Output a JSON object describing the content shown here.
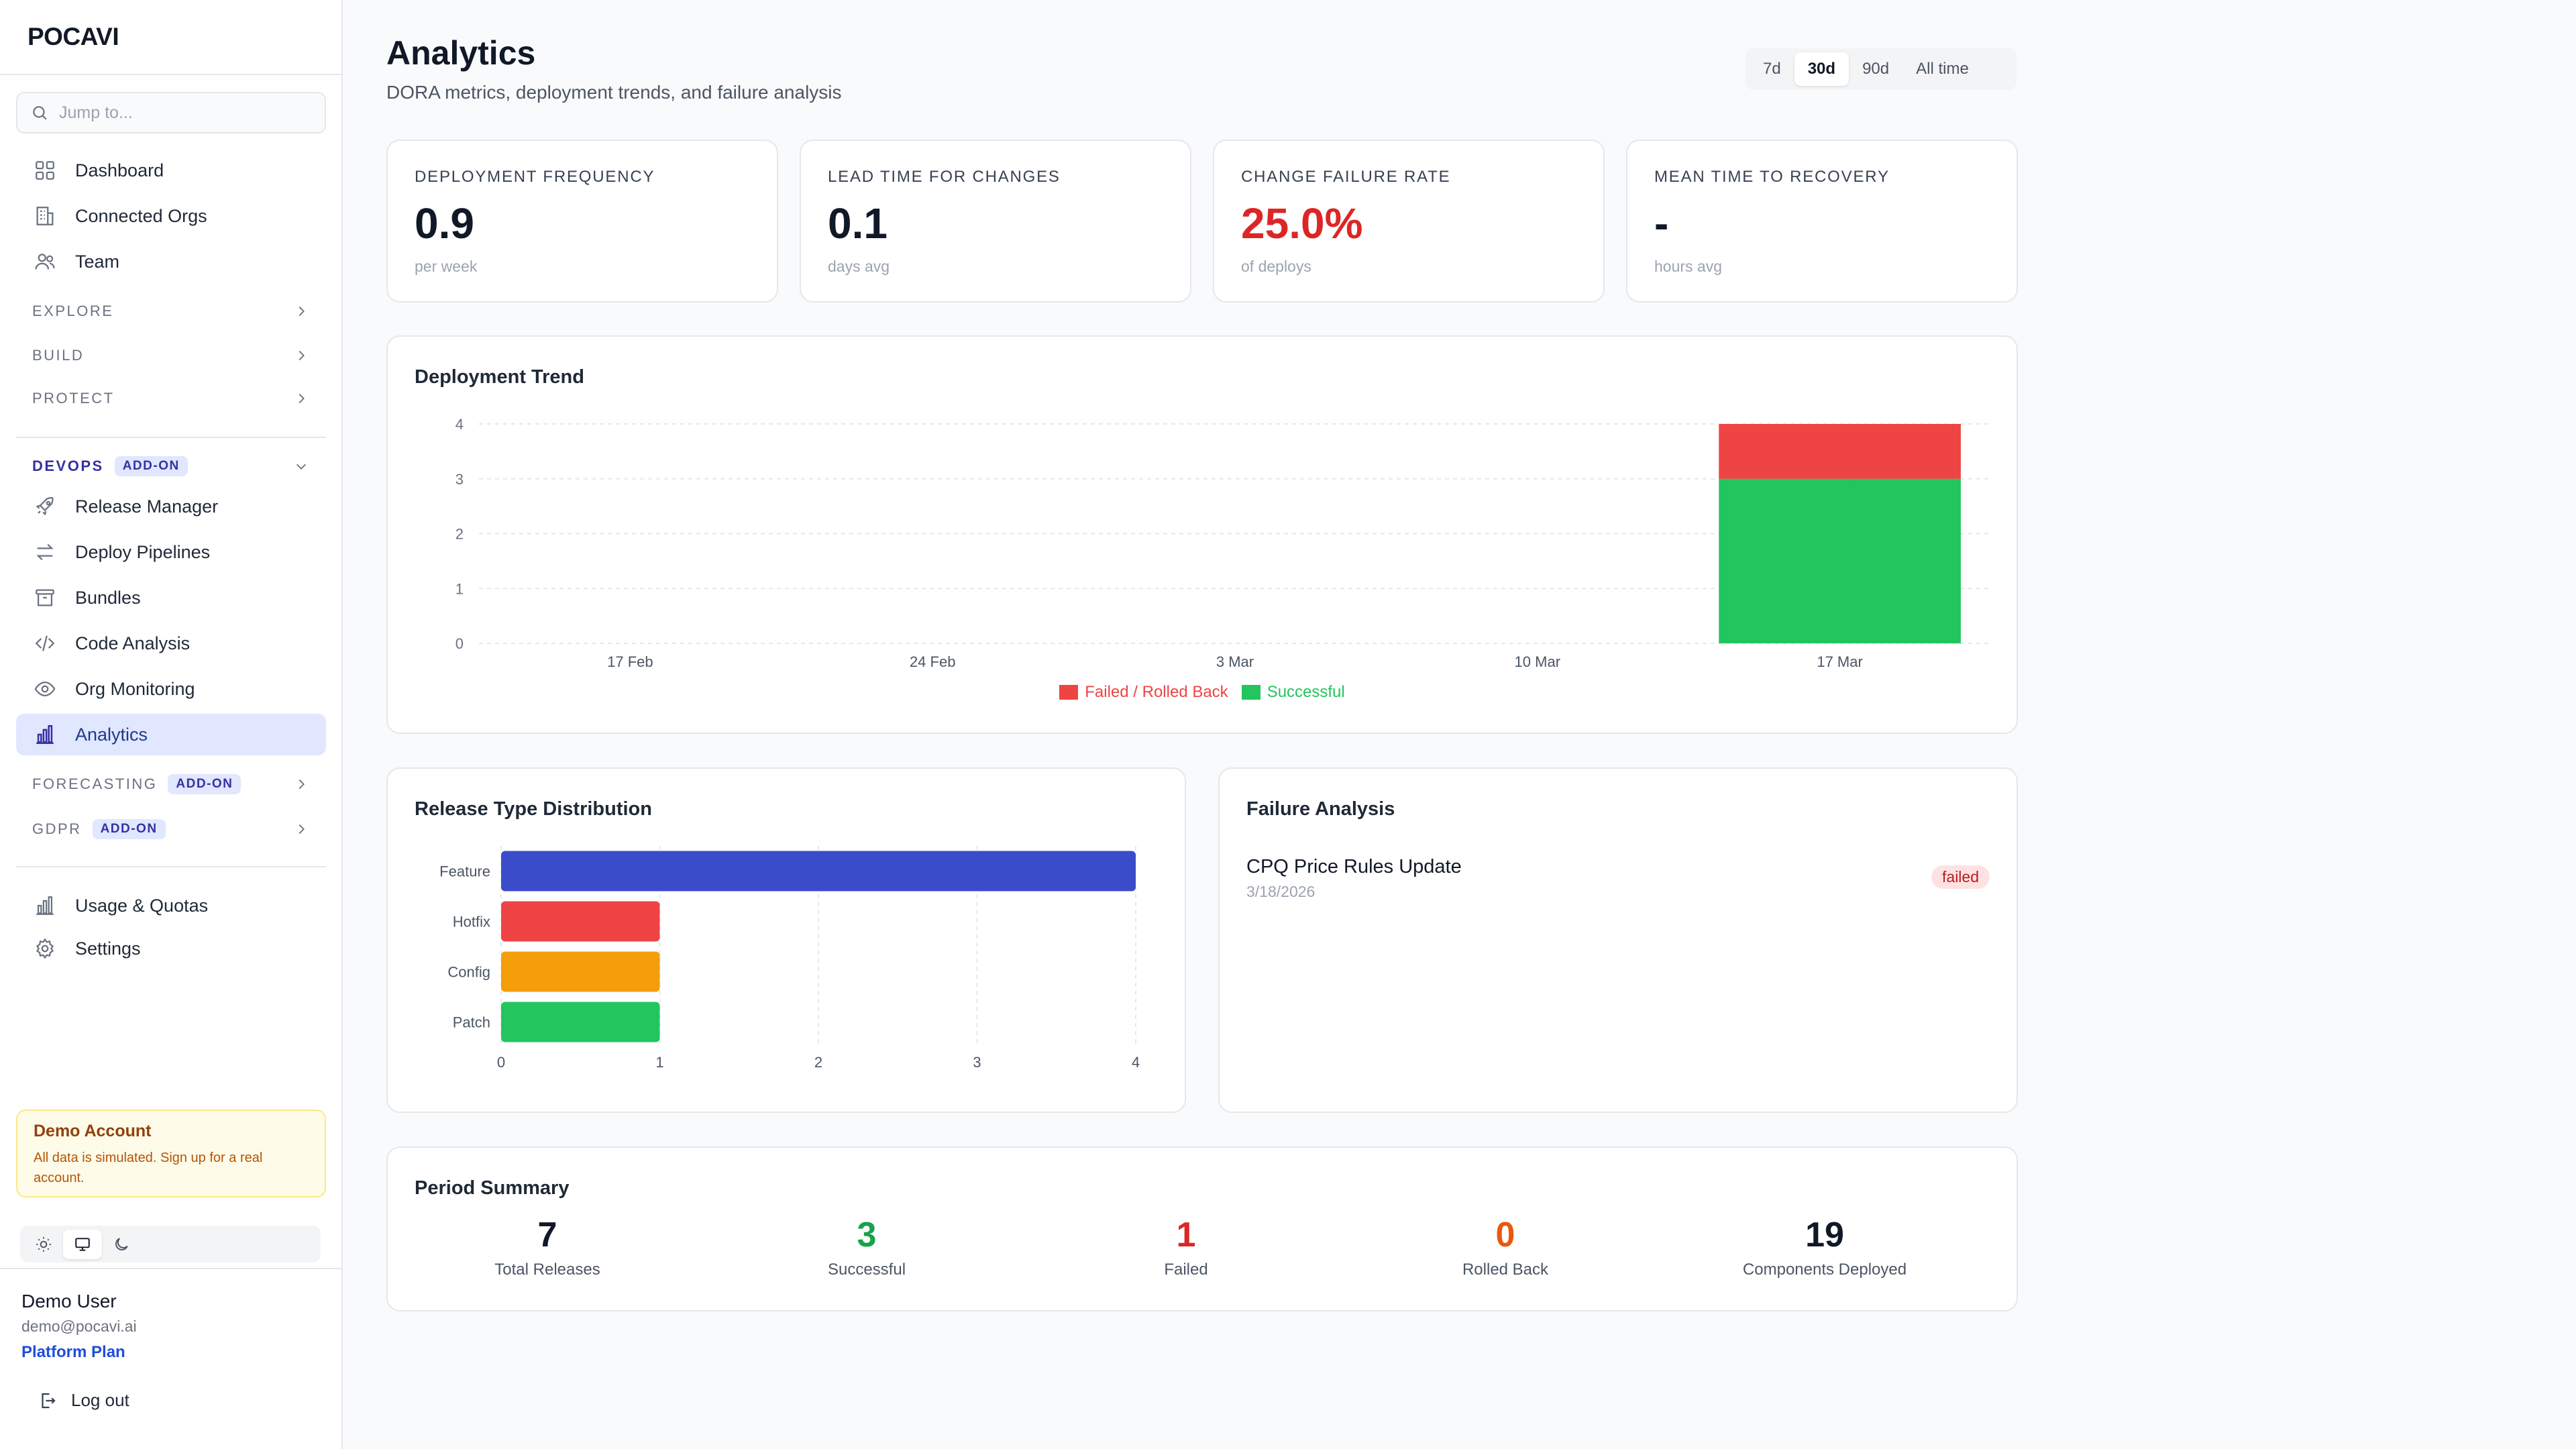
{
  "app": {
    "logo": "POCAVI"
  },
  "search": {
    "placeholder": "Jump to..."
  },
  "sidebar": {
    "top_items": [
      {
        "label": "Dashboard",
        "icon": "dashboard-icon"
      },
      {
        "label": "Connected Orgs",
        "icon": "building-icon"
      },
      {
        "label": "Team",
        "icon": "users-icon"
      }
    ],
    "sections": {
      "explore": "EXPLORE",
      "build": "BUILD",
      "protect": "PROTECT",
      "devops": "DEVOPS",
      "forecasting": "FORECASTING",
      "gdpr": "GDPR",
      "addon_label": "ADD-ON"
    },
    "devops_items": [
      {
        "label": "Release Manager",
        "icon": "rocket-icon"
      },
      {
        "label": "Deploy Pipelines",
        "icon": "arrows-icon"
      },
      {
        "label": "Bundles",
        "icon": "archive-icon"
      },
      {
        "label": "Code Analysis",
        "icon": "code-icon"
      },
      {
        "label": "Org Monitoring",
        "icon": "eye-icon"
      },
      {
        "label": "Analytics",
        "icon": "bar-chart-icon",
        "active": true
      }
    ],
    "bottom_items": [
      {
        "label": "Usage & Quotas",
        "icon": "bar-chart-icon"
      },
      {
        "label": "Settings",
        "icon": "gear-icon"
      }
    ],
    "demo": {
      "title": "Demo Account",
      "text": "All data is simulated. Sign up for a real account."
    },
    "user": {
      "name": "Demo User",
      "email": "demo@pocavi.ai",
      "plan": "Platform Plan",
      "logout": "Log out"
    }
  },
  "header": {
    "title": "Analytics",
    "subtitle": "DORA metrics, deployment trends, and failure analysis",
    "ranges": [
      "7d",
      "30d",
      "90d",
      "All time"
    ],
    "selected_range": "30d"
  },
  "metrics": [
    {
      "label": "DEPLOYMENT FREQUENCY",
      "value": "0.9",
      "unit": "per week"
    },
    {
      "label": "LEAD TIME FOR CHANGES",
      "value": "0.1",
      "unit": "days avg"
    },
    {
      "label": "CHANGE FAILURE RATE",
      "value": "25.0%",
      "unit": "of deploys"
    },
    {
      "label": "MEAN TIME TO RECOVERY",
      "value": "-",
      "unit": "hours avg"
    }
  ],
  "trend": {
    "title": "Deployment Trend"
  },
  "distribution": {
    "title": "Release Type Distribution"
  },
  "failure": {
    "title": "Failure Analysis",
    "items": [
      {
        "name": "CPQ Price Rules Update",
        "date": "3/18/2026",
        "status": "failed"
      }
    ]
  },
  "summary": {
    "title": "Period Summary",
    "items": [
      {
        "value": "7",
        "label": "Total Releases",
        "color": "#111827"
      },
      {
        "value": "3",
        "label": "Successful",
        "color": "#16a34a"
      },
      {
        "value": "1",
        "label": "Failed",
        "color": "#dc2626"
      },
      {
        "value": "0",
        "label": "Rolled Back",
        "color": "#ea580c"
      },
      {
        "value": "19",
        "label": "Components Deployed",
        "color": "#111827"
      }
    ]
  },
  "colors": {
    "failed": "#ef4444",
    "successful": "#22c55e",
    "feature": "#3b4cca",
    "hotfix": "#ef4444",
    "config": "#f59e0b",
    "patch": "#22c55e"
  },
  "chart_data": [
    {
      "type": "bar",
      "title": "Deployment Trend",
      "categories": [
        "17 Feb",
        "24 Feb",
        "3 Mar",
        "10 Mar",
        "17 Mar"
      ],
      "series": [
        {
          "name": "Successful",
          "values": [
            0,
            0,
            0,
            0,
            3
          ]
        },
        {
          "name": "Failed / Rolled Back",
          "values": [
            0,
            0,
            0,
            0,
            1
          ]
        }
      ],
      "stacked": true,
      "ylim": [
        0,
        4
      ],
      "yticks": [
        0,
        1,
        2,
        3,
        4
      ],
      "legend": "bottom",
      "grid": true
    },
    {
      "type": "bar",
      "orientation": "horizontal",
      "title": "Release Type Distribution",
      "categories": [
        "Feature",
        "Hotfix",
        "Config",
        "Patch"
      ],
      "values": [
        4,
        1,
        1,
        1
      ],
      "xlim": [
        0,
        4
      ],
      "xticks": [
        0,
        1,
        2,
        3,
        4
      ],
      "grid": true
    }
  ]
}
